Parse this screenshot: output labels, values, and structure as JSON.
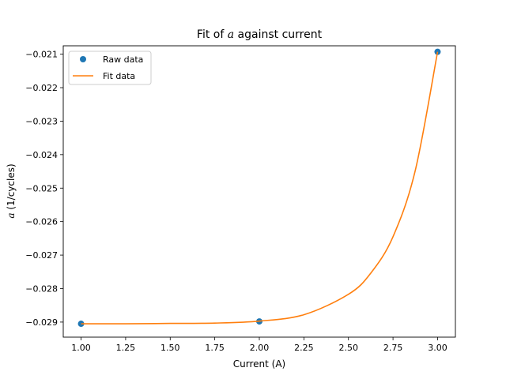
{
  "chart_data": {
    "type": "scatter",
    "title": {
      "prefix": "Fit of ",
      "math": "a",
      "suffix": " against current"
    },
    "xlabel": "Current (A)",
    "ylabel": {
      "math": "a",
      "suffix": " (1/cycles)"
    },
    "xlim": [
      0.9,
      3.1
    ],
    "ylim": [
      -0.02945,
      -0.02075
    ],
    "xticks": [
      1.0,
      1.25,
      1.5,
      1.75,
      2.0,
      2.25,
      2.5,
      2.75,
      3.0
    ],
    "xtick_labels": [
      "1.00",
      "1.25",
      "1.50",
      "1.75",
      "2.00",
      "2.25",
      "2.50",
      "2.75",
      "3.00"
    ],
    "yticks": [
      -0.021,
      -0.022,
      -0.023,
      -0.024,
      -0.025,
      -0.026,
      -0.027,
      -0.028,
      -0.029
    ],
    "ytick_labels": [
      "−0.021",
      "−0.022",
      "−0.023",
      "−0.024",
      "−0.025",
      "−0.026",
      "−0.027",
      "−0.028",
      "−0.029"
    ],
    "grid": false,
    "legend_position": "top-left",
    "series": [
      {
        "name": "Raw data",
        "kind": "markers",
        "color": "#1f77b4",
        "x": [
          1.0,
          2.0,
          3.0
        ],
        "y": [
          -0.02905,
          -0.02898,
          -0.02093
        ]
      },
      {
        "name": "Fit data",
        "kind": "line",
        "color": "#ff7f0e",
        "x": [
          1.0,
          1.25,
          1.5,
          1.75,
          2.0,
          2.25,
          2.5,
          2.625,
          2.75,
          2.875,
          3.0
        ],
        "y": [
          -0.02905,
          -0.02905,
          -0.02904,
          -0.02903,
          -0.02897,
          -0.02878,
          -0.02817,
          -0.02754,
          -0.02645,
          -0.02447,
          -0.02093
        ]
      }
    ]
  }
}
